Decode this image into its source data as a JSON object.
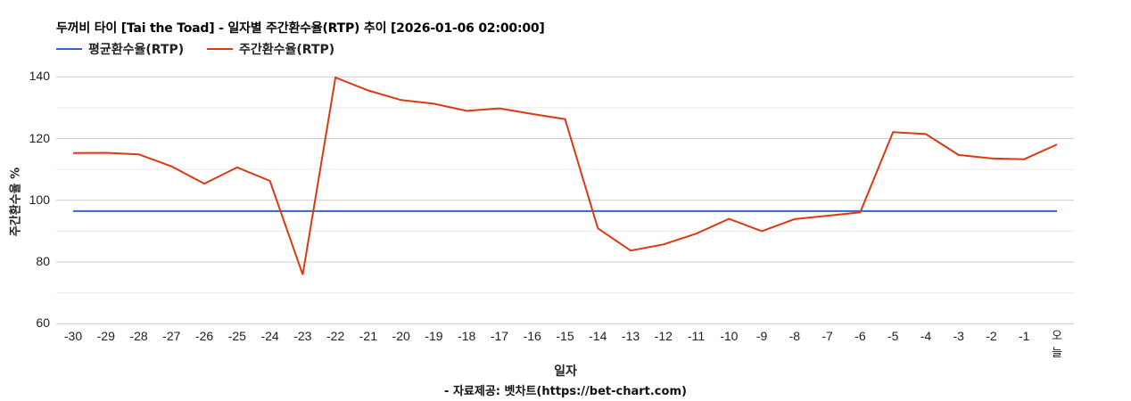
{
  "chart_data": {
    "type": "line",
    "title": "두꺼비 타이 [Tai the Toad] - 일자별 주간환수율(RTP) 추이 [2026-01-06 02:00:00]",
    "xlabel": "일자",
    "ylabel": "주간환수율 %",
    "source_note": "- 자료제공: 벳차트(https://bet-chart.com)",
    "ylim": [
      60,
      140
    ],
    "yticks": [
      60,
      80,
      100,
      120,
      140
    ],
    "minor_gridlines": [
      70,
      90,
      110,
      130
    ],
    "grid": true,
    "legend_position": "top",
    "categories": [
      "-30",
      "-29",
      "-28",
      "-27",
      "-26",
      "-25",
      "-24",
      "-23",
      "-22",
      "-21",
      "-20",
      "-19",
      "-18",
      "-17",
      "-16",
      "-15",
      "-14",
      "-13",
      "-12",
      "-11",
      "-10",
      "-9",
      "-8",
      "-7",
      "-6",
      "-5",
      "-4",
      "-3",
      "-2",
      "-1",
      "오늘"
    ],
    "series": [
      {
        "name": "평균환수율(RTP)",
        "color": "#3366cc",
        "values": [
          96.5,
          96.5,
          96.5,
          96.5,
          96.5,
          96.5,
          96.5,
          96.5,
          96.5,
          96.5,
          96.5,
          96.5,
          96.5,
          96.5,
          96.5,
          96.5,
          96.5,
          96.5,
          96.5,
          96.5,
          96.5,
          96.5,
          96.5,
          96.5,
          96.5,
          96.5,
          96.5,
          96.5,
          96.5,
          96.5,
          96.5
        ]
      },
      {
        "name": "주간환수율(RTP)",
        "color": "#dc3912",
        "values": [
          115.3,
          115.4,
          114.9,
          111.0,
          105.4,
          110.7,
          106.3,
          75.9,
          139.8,
          135.6,
          132.5,
          131.3,
          129.0,
          129.8,
          128.0,
          126.3,
          90.9,
          83.7,
          85.7,
          89.2,
          94.0,
          90.0,
          93.9,
          95.0,
          96.1,
          122.1,
          121.5,
          114.7,
          113.6,
          113.3,
          118.1
        ]
      }
    ]
  },
  "header": {
    "title": "두꺼비 타이 [Tai the Toad] - 일자별 주간환수율(RTP) 추이 [2026-01-06 02:00:00]"
  },
  "legend": {
    "items": [
      {
        "label": "평균환수율(RTP)",
        "color": "#3366cc"
      },
      {
        "label": "주간환수율(RTP)",
        "color": "#dc3912"
      }
    ]
  },
  "axes": {
    "y_title": "주간환수율 %",
    "x_title": "일자",
    "y_ticks": [
      "140",
      "120",
      "100",
      "80",
      "60"
    ]
  },
  "footer": {
    "source": "- 자료제공: 벳차트(https://bet-chart.com)"
  }
}
